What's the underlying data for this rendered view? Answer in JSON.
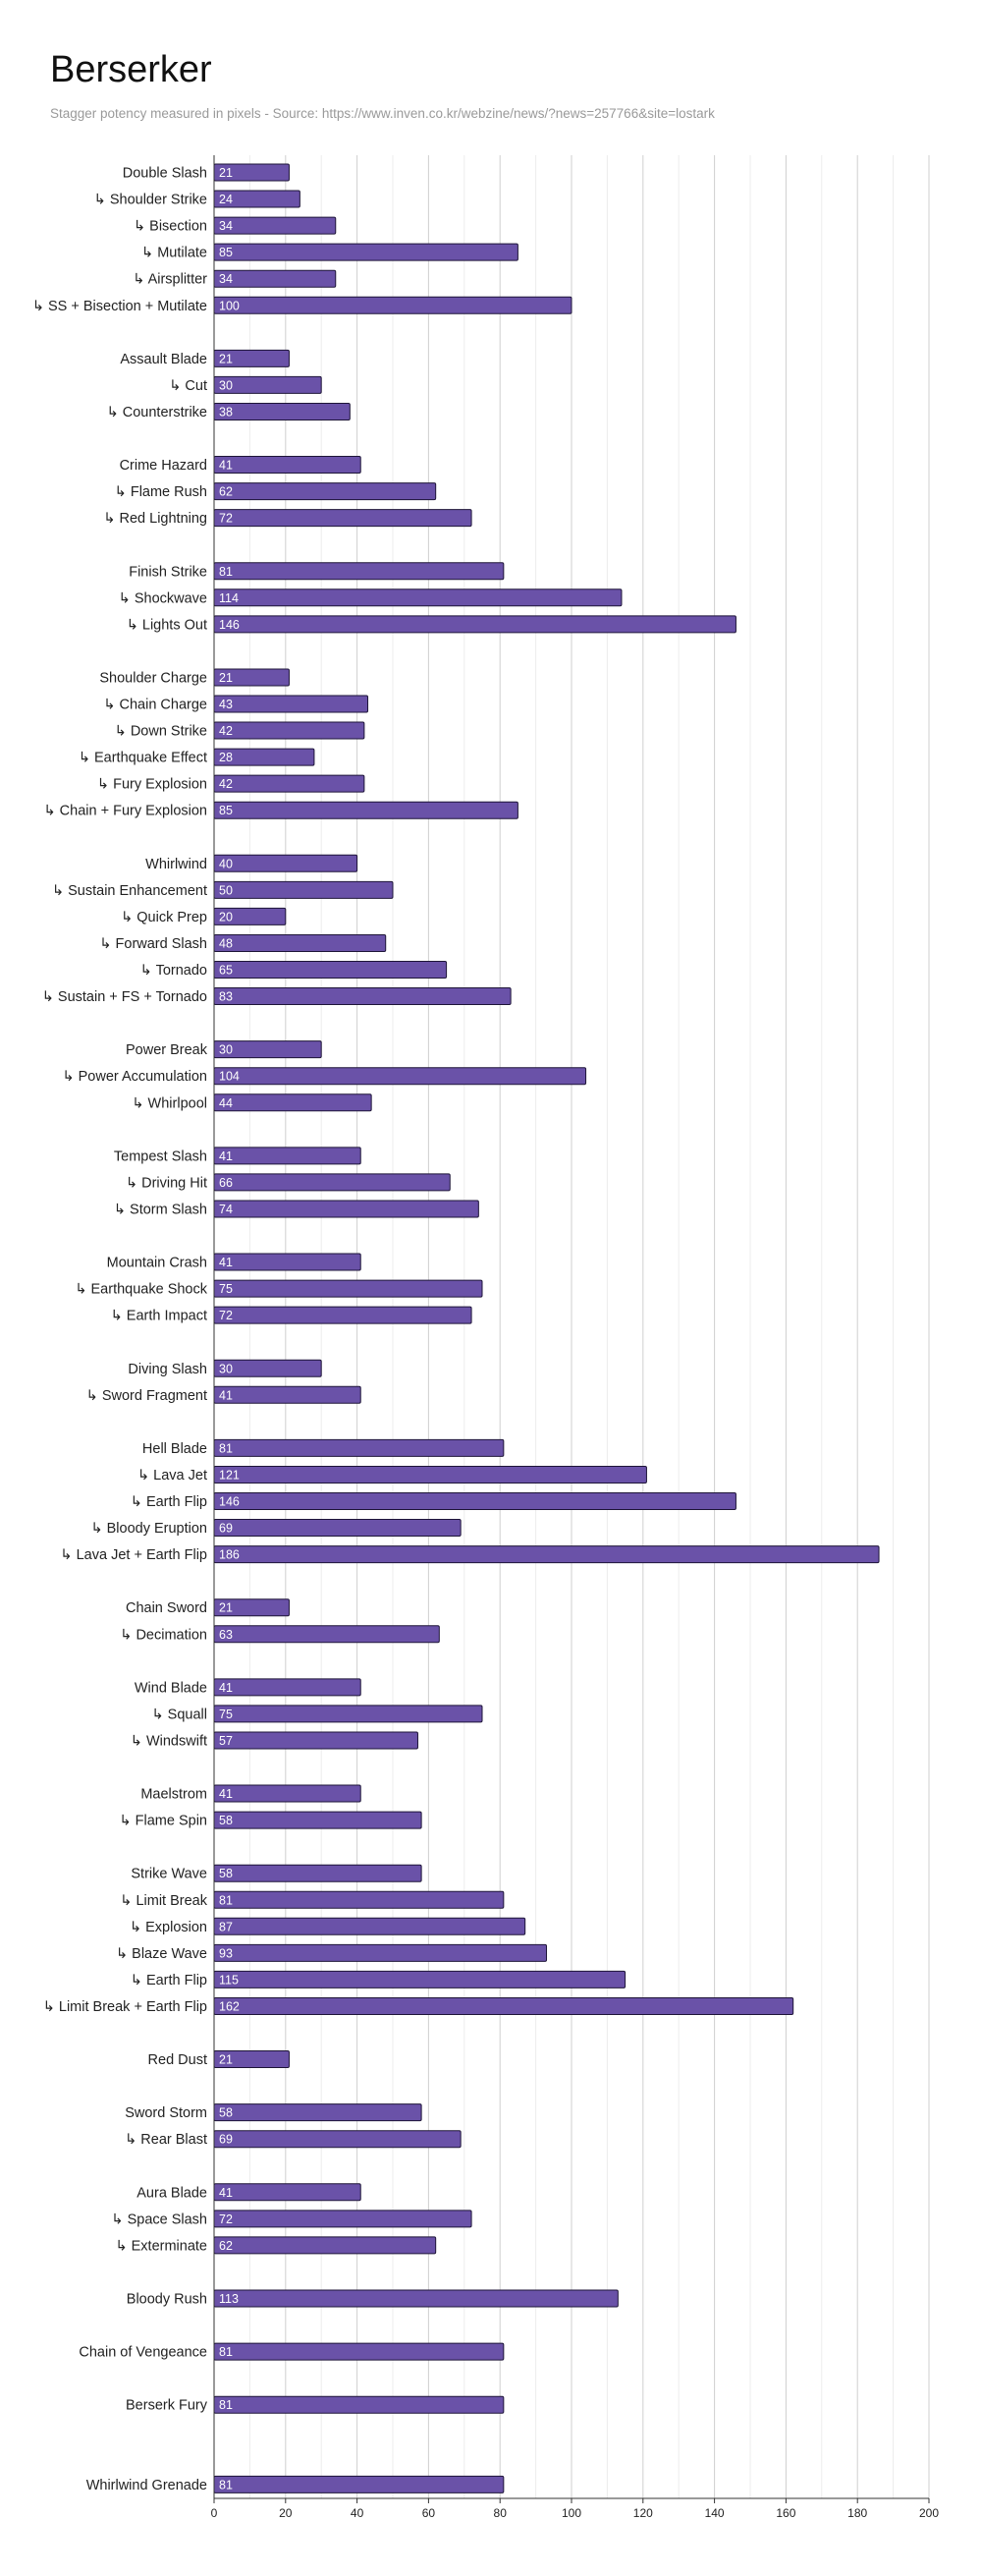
{
  "chart_data": {
    "type": "bar",
    "orientation": "horizontal",
    "title": "Berserker",
    "subtitle": "Stagger potency measured in pixels - Source: https://www.inven.co.kr/webzine/news/?news=257766&site=lostark",
    "xlim": [
      0,
      200
    ],
    "x_ticks": [
      "0",
      "20",
      "40",
      "60",
      "80",
      "100",
      "120",
      "140",
      "160",
      "180",
      "200"
    ],
    "grid": true,
    "bar_color": "#6a52a8",
    "bar_edge_color": "#1e1538",
    "categories": [
      "Double Slash",
      "↳ Shoulder Strike",
      "↳ Bisection",
      "↳ Mutilate",
      "↳ Airsplitter",
      "↳ SS + Bisection + Mutilate",
      "",
      "Assault Blade",
      "↳ Cut",
      "↳ Counterstrike",
      "",
      "Crime Hazard",
      "↳ Flame Rush",
      "↳ Red Lightning",
      "",
      "Finish Strike",
      "↳ Shockwave",
      "↳ Lights Out",
      "",
      "Shoulder Charge",
      "↳ Chain Charge",
      "↳ Down Strike",
      "↳ Earthquake Effect",
      "↳ Fury Explosion",
      "↳ Chain + Fury Explosion",
      "",
      "Whirlwind",
      "↳ Sustain Enhancement",
      "↳ Quick Prep",
      "↳ Forward Slash",
      "↳ Tornado",
      "↳ Sustain + FS + Tornado",
      "",
      "Power Break",
      "↳ Power Accumulation",
      "↳ Whirlpool",
      "",
      "Tempest Slash",
      "↳ Driving Hit",
      "↳ Storm Slash",
      "",
      "Mountain Crash",
      "↳ Earthquake Shock",
      "↳ Earth Impact",
      "",
      "Diving Slash",
      "↳ Sword Fragment",
      "",
      "Hell Blade",
      "↳ Lava Jet",
      "↳ Earth Flip",
      "↳ Bloody Eruption",
      "↳ Lava Jet + Earth Flip",
      "",
      "Chain Sword",
      "↳ Decimation",
      "",
      "Wind Blade",
      "↳ Squall",
      "↳ Windswift",
      "",
      "Maelstrom",
      "↳ Flame Spin",
      "",
      "Strike Wave",
      "↳ Limit Break",
      "↳ Explosion",
      "↳ Blaze Wave",
      "↳ Earth Flip",
      "↳ Limit Break + Earth Flip",
      "",
      "Red Dust",
      "",
      "Sword Storm",
      "↳ Rear Blast",
      "",
      "Aura Blade",
      "↳ Space Slash",
      "↳ Exterminate",
      "",
      "Bloody Rush",
      "",
      "Chain of Vengeance",
      "",
      "Berserk Fury",
      "",
      "",
      "Whirlwind Grenade"
    ],
    "values": [
      21,
      24,
      34,
      85,
      34,
      100,
      null,
      21,
      30,
      38,
      null,
      41,
      62,
      72,
      null,
      81,
      114,
      146,
      null,
      21,
      43,
      42,
      28,
      42,
      85,
      null,
      40,
      50,
      20,
      48,
      65,
      83,
      null,
      30,
      104,
      44,
      null,
      41,
      66,
      74,
      null,
      41,
      75,
      72,
      null,
      30,
      41,
      null,
      81,
      121,
      146,
      69,
      186,
      null,
      21,
      63,
      null,
      41,
      75,
      57,
      null,
      41,
      58,
      null,
      58,
      81,
      87,
      93,
      115,
      162,
      null,
      21,
      null,
      58,
      69,
      null,
      41,
      72,
      62,
      null,
      113,
      null,
      81,
      null,
      81,
      null,
      null,
      81
    ]
  }
}
